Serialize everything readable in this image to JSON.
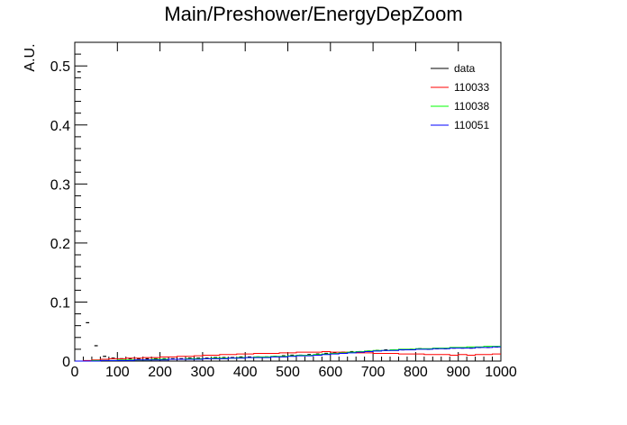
{
  "chart_data": {
    "type": "line",
    "title": "Main/Preshower/EnergyDepZoom",
    "xlabel": "",
    "ylabel": "A.U.",
    "xlim": [
      0,
      1000
    ],
    "ylim": [
      0,
      0.54
    ],
    "x_ticks": [
      "0",
      "100",
      "200",
      "300",
      "400",
      "500",
      "600",
      "700",
      "800",
      "900",
      "1000"
    ],
    "y_ticks": [
      "0",
      "0.1",
      "0.2",
      "0.3",
      "0.4",
      "0.5"
    ],
    "grid": false,
    "legend_position": "top-right",
    "bin_width": 20,
    "series": [
      {
        "name": "data",
        "color": "#000000",
        "style": "markers",
        "x": [
          10,
          30,
          50,
          70,
          90,
          110,
          130,
          150,
          170,
          190,
          210,
          230,
          250,
          270,
          290,
          310,
          330,
          350,
          370,
          390,
          410,
          430,
          450,
          470,
          490,
          510,
          530,
          550,
          570,
          590,
          610,
          630,
          650,
          670,
          690,
          710,
          730,
          750,
          770,
          790,
          810,
          830,
          850,
          870,
          890,
          910,
          930,
          950,
          970,
          990
        ],
        "values": [
          0.49,
          0.065,
          0.026,
          0.008,
          0.005,
          0.004,
          0.004,
          0.004,
          0.004,
          0.004,
          0.004,
          0.004,
          0.004,
          0.005,
          0.005,
          0.005,
          0.006,
          0.006,
          0.006,
          0.007,
          0.007,
          0.007,
          0.007,
          0.008,
          0.009,
          0.01,
          0.01,
          0.011,
          0.012,
          0.013,
          0.014,
          0.015,
          0.016,
          0.016,
          0.017,
          0.018,
          0.019,
          0.019,
          0.019,
          0.02,
          0.021,
          0.02,
          0.021,
          0.021,
          0.022,
          0.022,
          0.022,
          0.023,
          0.023,
          0.024
        ]
      },
      {
        "name": "110033",
        "color": "#ff0000",
        "style": "step",
        "x": [
          10,
          30,
          50,
          70,
          90,
          110,
          130,
          150,
          170,
          190,
          210,
          230,
          250,
          270,
          290,
          310,
          330,
          350,
          370,
          390,
          410,
          430,
          450,
          470,
          490,
          510,
          530,
          550,
          570,
          590,
          610,
          630,
          650,
          670,
          690,
          710,
          730,
          750,
          770,
          790,
          810,
          830,
          850,
          870,
          890,
          910,
          930,
          950,
          970,
          990
        ],
        "values": [
          0.0,
          0.001,
          0.002,
          0.003,
          0.004,
          0.004,
          0.005,
          0.005,
          0.006,
          0.006,
          0.007,
          0.007,
          0.008,
          0.008,
          0.009,
          0.01,
          0.01,
          0.011,
          0.011,
          0.012,
          0.012,
          0.013,
          0.013,
          0.013,
          0.014,
          0.014,
          0.015,
          0.015,
          0.015,
          0.016,
          0.015,
          0.015,
          0.015,
          0.014,
          0.014,
          0.013,
          0.013,
          0.013,
          0.012,
          0.012,
          0.012,
          0.011,
          0.011,
          0.011,
          0.01,
          0.011,
          0.01,
          0.011,
          0.011,
          0.012
        ]
      },
      {
        "name": "110038",
        "color": "#00ff00",
        "style": "step",
        "x": [
          10,
          30,
          50,
          70,
          90,
          110,
          130,
          150,
          170,
          190,
          210,
          230,
          250,
          270,
          290,
          310,
          330,
          350,
          370,
          390,
          410,
          430,
          450,
          470,
          490,
          510,
          530,
          550,
          570,
          590,
          610,
          630,
          650,
          670,
          690,
          710,
          730,
          750,
          770,
          790,
          810,
          830,
          850,
          870,
          890,
          910,
          930,
          950,
          970,
          990
        ],
        "values": [
          0.0,
          0.0,
          0.001,
          0.001,
          0.001,
          0.002,
          0.002,
          0.002,
          0.002,
          0.003,
          0.003,
          0.003,
          0.003,
          0.004,
          0.004,
          0.004,
          0.005,
          0.005,
          0.005,
          0.006,
          0.006,
          0.007,
          0.007,
          0.008,
          0.008,
          0.009,
          0.01,
          0.01,
          0.011,
          0.012,
          0.013,
          0.014,
          0.015,
          0.016,
          0.017,
          0.018,
          0.018,
          0.019,
          0.02,
          0.02,
          0.021,
          0.021,
          0.022,
          0.022,
          0.023,
          0.023,
          0.024,
          0.024,
          0.025,
          0.025
        ]
      },
      {
        "name": "110051",
        "color": "#0000ff",
        "style": "step",
        "x": [
          10,
          30,
          50,
          70,
          90,
          110,
          130,
          150,
          170,
          190,
          210,
          230,
          250,
          270,
          290,
          310,
          330,
          350,
          370,
          390,
          410,
          430,
          450,
          470,
          490,
          510,
          530,
          550,
          570,
          590,
          610,
          630,
          650,
          670,
          690,
          710,
          730,
          750,
          770,
          790,
          810,
          830,
          850,
          870,
          890,
          910,
          930,
          950,
          970,
          990
        ],
        "values": [
          0.0,
          0.0,
          0.0,
          0.001,
          0.001,
          0.001,
          0.001,
          0.002,
          0.002,
          0.002,
          0.002,
          0.003,
          0.003,
          0.003,
          0.003,
          0.004,
          0.004,
          0.004,
          0.005,
          0.005,
          0.006,
          0.006,
          0.006,
          0.007,
          0.007,
          0.008,
          0.009,
          0.009,
          0.01,
          0.011,
          0.012,
          0.013,
          0.014,
          0.015,
          0.016,
          0.017,
          0.018,
          0.018,
          0.019,
          0.019,
          0.02,
          0.02,
          0.021,
          0.021,
          0.022,
          0.022,
          0.022,
          0.023,
          0.023,
          0.024
        ]
      }
    ]
  }
}
